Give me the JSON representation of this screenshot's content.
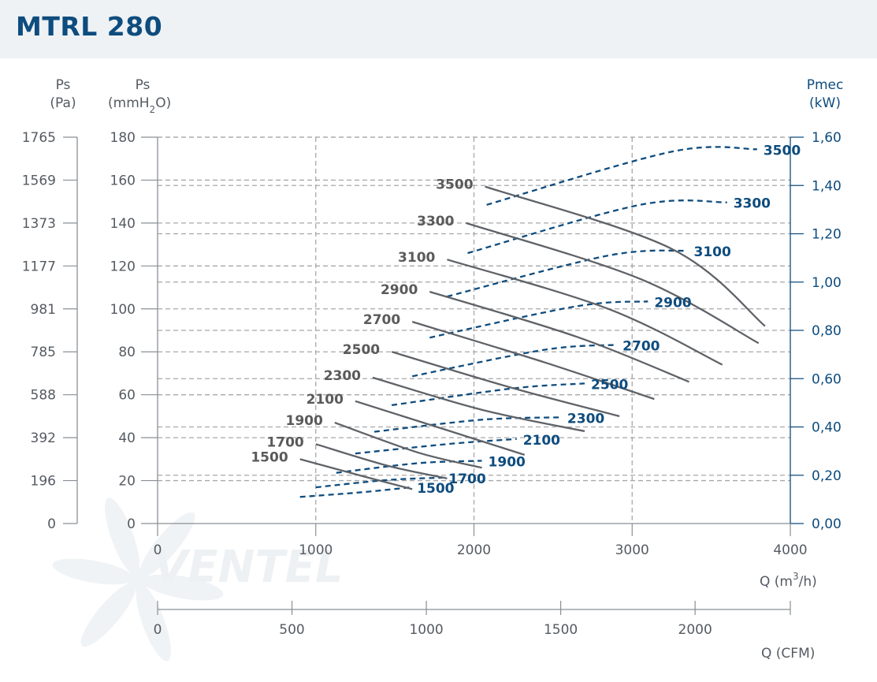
{
  "title": "MTRL 280",
  "axes": {
    "pa_label": "Ps",
    "pa_unit": "(Pa)",
    "mm_label": "Ps",
    "mm_unit_main": "(mmH",
    "mm_unit_sub": "2",
    "mm_unit_end": "O)",
    "kw_label": "Pmec",
    "kw_unit": "(kW)",
    "q_main": "Q (m",
    "q_sup": "3",
    "q_end": "/h)",
    "q_cfm": "Q (CFM)"
  },
  "watermark": "VENTEL",
  "colors": {
    "ps_curve": "#5f6368",
    "power_curve": "#0e4c7e",
    "grid": "#a7a7a7",
    "title": "#0e4c7e",
    "header_bg": "#eef2f5"
  },
  "chart_data": {
    "type": "line",
    "title": "MTRL 280",
    "xlabel": "Q (m3/h)",
    "x2label": "Q (CFM)",
    "ylabel": "Ps (mmH2O)",
    "y_pa_label": "Ps (Pa)",
    "y2label": "Pmec (kW)",
    "xlim": [
      0,
      4000
    ],
    "ylim": [
      0,
      180
    ],
    "y2lim": [
      0,
      1.6
    ],
    "x_ticks": [
      "0",
      "1000",
      "2000",
      "3000",
      "4000"
    ],
    "x2_ticks": [
      "0",
      "500",
      "1000",
      "1500",
      "2000"
    ],
    "y_ticks": [
      "0",
      "20",
      "40",
      "60",
      "80",
      "100",
      "120",
      "140",
      "160",
      "180"
    ],
    "y_pa_ticks": [
      "0",
      "196",
      "392",
      "588",
      "785",
      "981",
      "1177",
      "1373",
      "1569",
      "1765"
    ],
    "y2_ticks": [
      "0,00",
      "0,20",
      "0,40",
      "0,60",
      "0,80",
      "1,00",
      "1,20",
      "1,40",
      "1,60"
    ],
    "grid": true,
    "pressure_series": [
      {
        "name": "1500",
        "points": [
          [
            900,
            30
          ],
          [
            1300,
            22
          ],
          [
            1610,
            16
          ]
        ]
      },
      {
        "name": "1700",
        "points": [
          [
            1000,
            37
          ],
          [
            1450,
            27
          ],
          [
            1830,
            21
          ]
        ]
      },
      {
        "name": "1900",
        "points": [
          [
            1120,
            47
          ],
          [
            1650,
            33
          ],
          [
            2050,
            26
          ]
        ]
      },
      {
        "name": "2100",
        "points": [
          [
            1250,
            57
          ],
          [
            1850,
            43
          ],
          [
            2320,
            32
          ]
        ]
      },
      {
        "name": "2300",
        "points": [
          [
            1360,
            68
          ],
          [
            2050,
            53
          ],
          [
            2700,
            43
          ]
        ]
      },
      {
        "name": "2500",
        "points": [
          [
            1480,
            80
          ],
          [
            2250,
            63
          ],
          [
            2920,
            50
          ]
        ]
      },
      {
        "name": "2700",
        "points": [
          [
            1610,
            94
          ],
          [
            2450,
            75
          ],
          [
            3140,
            58
          ]
        ]
      },
      {
        "name": "2900",
        "points": [
          [
            1720,
            108
          ],
          [
            2650,
            87
          ],
          [
            3360,
            66
          ]
        ]
      },
      {
        "name": "3100",
        "points": [
          [
            1830,
            123
          ],
          [
            2850,
            100
          ],
          [
            3570,
            74
          ]
        ]
      },
      {
        "name": "3300",
        "points": [
          [
            1950,
            140
          ],
          [
            3050,
            114
          ],
          [
            3800,
            84
          ]
        ]
      },
      {
        "name": "3500",
        "points": [
          [
            2070,
            157
          ],
          [
            3250,
            128
          ],
          [
            3840,
            92
          ]
        ]
      }
    ],
    "power_series": [
      {
        "name": "1500",
        "points": [
          [
            900,
            0.11
          ],
          [
            1300,
            0.13
          ],
          [
            1600,
            0.15
          ]
        ]
      },
      {
        "name": "1700",
        "points": [
          [
            1000,
            0.15
          ],
          [
            1450,
            0.18
          ],
          [
            1800,
            0.19
          ]
        ]
      },
      {
        "name": "1900",
        "points": [
          [
            1130,
            0.21
          ],
          [
            1650,
            0.25
          ],
          [
            2050,
            0.26
          ]
        ]
      },
      {
        "name": "2100",
        "points": [
          [
            1250,
            0.29
          ],
          [
            1850,
            0.33
          ],
          [
            2270,
            0.35
          ]
        ]
      },
      {
        "name": "2300",
        "points": [
          [
            1370,
            0.38
          ],
          [
            2050,
            0.43
          ],
          [
            2550,
            0.44
          ]
        ]
      },
      {
        "name": "2500",
        "points": [
          [
            1480,
            0.49
          ],
          [
            2250,
            0.56
          ],
          [
            2700,
            0.58
          ]
        ]
      },
      {
        "name": "2700",
        "points": [
          [
            1610,
            0.61
          ],
          [
            2450,
            0.72
          ],
          [
            2900,
            0.74
          ]
        ]
      },
      {
        "name": "2900",
        "points": [
          [
            1720,
            0.77
          ],
          [
            2650,
            0.9
          ],
          [
            3100,
            0.92
          ]
        ]
      },
      {
        "name": "3100",
        "points": [
          [
            1830,
            0.94
          ],
          [
            2850,
            1.11
          ],
          [
            3350,
            1.13
          ]
        ]
      },
      {
        "name": "3300",
        "points": [
          [
            1960,
            1.12
          ],
          [
            3050,
            1.32
          ],
          [
            3600,
            1.33
          ]
        ]
      },
      {
        "name": "3500",
        "points": [
          [
            2080,
            1.32
          ],
          [
            3250,
            1.54
          ],
          [
            3790,
            1.55
          ]
        ]
      }
    ]
  }
}
